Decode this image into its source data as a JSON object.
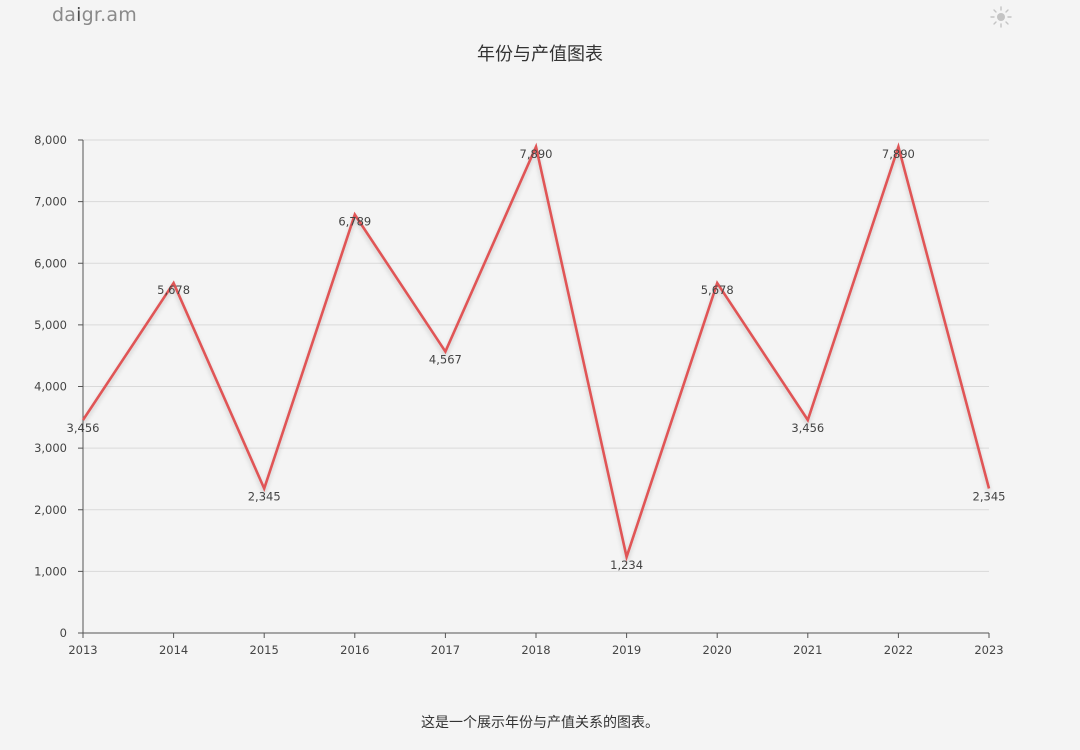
{
  "brand": {
    "prefix": "da",
    "highlight": "i",
    "suffix": "gr.am"
  },
  "theme_toggle": {
    "icon": "sun-icon"
  },
  "caption": "这是一个展示年份与产值关系的图表。",
  "colors": {
    "line": "#e05556",
    "grid": "#d9d9d9",
    "axis": "#555555",
    "background": "#f4f4f4"
  },
  "chart_data": {
    "type": "line",
    "title": "年份与产值图表",
    "xlabel": "",
    "ylabel": "",
    "x": [
      "2013",
      "2014",
      "2015",
      "2016",
      "2017",
      "2018",
      "2019",
      "2020",
      "2021",
      "2022",
      "2023"
    ],
    "series": [
      {
        "values": [
          3456,
          5678,
          2345,
          6789,
          4567,
          7890,
          1234,
          5678,
          3456,
          7890,
          2345
        ],
        "value_labels": [
          "3,456",
          "5,678",
          "2,345",
          "6,789",
          "4,567",
          "7,890",
          "1,234",
          "5,678",
          "3,456",
          "7,890",
          "2,345"
        ]
      }
    ],
    "ylim": [
      0,
      8000
    ],
    "yticks": [
      0,
      1000,
      2000,
      3000,
      4000,
      5000,
      6000,
      7000,
      8000
    ],
    "ytick_labels": [
      "0",
      "1,000",
      "2,000",
      "3,000",
      "4,000",
      "5,000",
      "6,000",
      "7,000",
      "8,000"
    ],
    "grid": true,
    "legend": "none"
  }
}
